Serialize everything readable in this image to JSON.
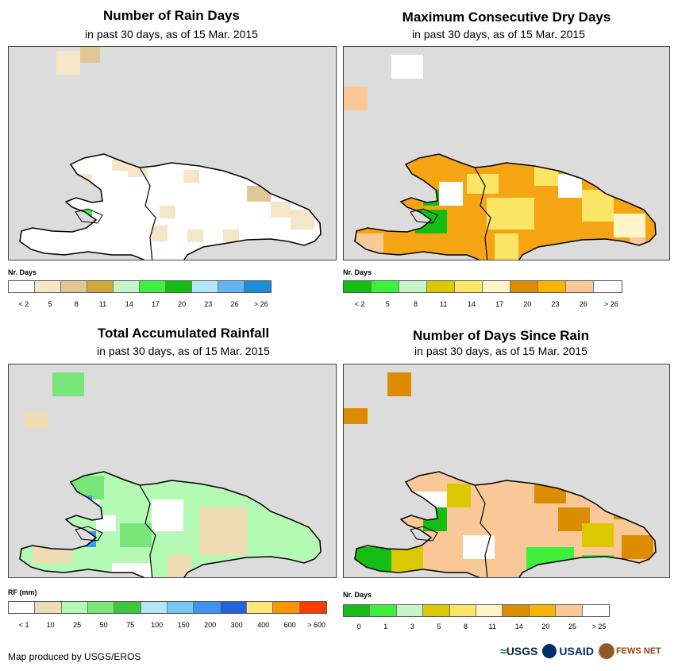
{
  "panels": [
    {
      "title": "Number of Rain Days",
      "subtitle": "in past 30 days, as of 15 Mar. 2015",
      "legend_title": "Nr. Days",
      "legend_colors": [
        "#ffffff",
        "#f5e6c8",
        "#e0c896",
        "#d2aa3c",
        "#c8f5c8",
        "#3cf03c",
        "#14be14",
        "#b4e6fa",
        "#64b4f5",
        "#1e8cd2"
      ],
      "legend_labels": [
        "< 2",
        "5",
        "8",
        "11",
        "14",
        "17",
        "20",
        "23",
        "26",
        "> 26"
      ],
      "map_colors": {
        "base": "#ffffff",
        "a": "#f5e6c8",
        "b": "#e0c896",
        "c": "#3cf03c",
        "d": "#64b4f5",
        "e": "#c8f5c8"
      }
    },
    {
      "title": "Maximum Consecutive Dry Days",
      "subtitle": "in past 30 days, as of 15 Mar. 2015",
      "legend_title": "Nr. Days",
      "legend_colors": [
        "#14be14",
        "#3cf03c",
        "#c8f5c8",
        "#dcc800",
        "#fae664",
        "#fff5c8",
        "#dc8c00",
        "#fab400",
        "#fac896",
        "#ffffff"
      ],
      "legend_labels": [
        "< 2",
        "5",
        "8",
        "11",
        "14",
        "17",
        "20",
        "23",
        "26",
        "> 26"
      ],
      "map_colors": {
        "base": "#f5a514",
        "a": "#fae664",
        "b": "#fff5c8",
        "c": "#14be14",
        "d": "#fac896",
        "e": "#ffffff"
      }
    },
    {
      "title": "Total Accumulated Rainfall",
      "subtitle": "in past 30 days, as of 15 Mar. 2015",
      "legend_title": "RF (mm)",
      "legend_colors": [
        "#ffffff",
        "#f0dcb4",
        "#b4fab4",
        "#78e678",
        "#3cc83c",
        "#b4e6fa",
        "#78c8f5",
        "#3c96f0",
        "#1e64dc",
        "#ffe678",
        "#fa9600",
        "#fa3c00"
      ],
      "legend_labels": [
        "< 1",
        "10",
        "25",
        "50",
        "75",
        "100",
        "150",
        "200",
        "300",
        "400",
        "600",
        "> 600"
      ],
      "map_colors": {
        "base": "#b4fab4",
        "a": "#f0dcb4",
        "b": "#ffffff",
        "c": "#3c96f0",
        "d": "#78e678",
        "e": "#b4e6fa"
      }
    },
    {
      "title": "Number of Days Since Rain",
      "subtitle": "in past 30 days, as of 15 Mar. 2015",
      "legend_title": "Nr. Days",
      "legend_colors": [
        "#14be14",
        "#3cf03c",
        "#c8f5c8",
        "#dcc800",
        "#fae664",
        "#fff5c8",
        "#dc8c00",
        "#fab400",
        "#fac896",
        "#ffffff"
      ],
      "legend_labels": [
        "0",
        "1",
        "3",
        "5",
        "8",
        "11",
        "14",
        "20",
        "25",
        "> 25"
      ],
      "map_colors": {
        "base": "#fac896",
        "a": "#3cf03c",
        "b": "#dcc800",
        "c": "#14be14",
        "d": "#dc8c00",
        "e": "#ffffff"
      }
    }
  ],
  "credit": "Map produced by USGS/EROS",
  "logos": {
    "usgs": "USGS",
    "usaid": "USAID",
    "fews": "FEWS NET"
  }
}
